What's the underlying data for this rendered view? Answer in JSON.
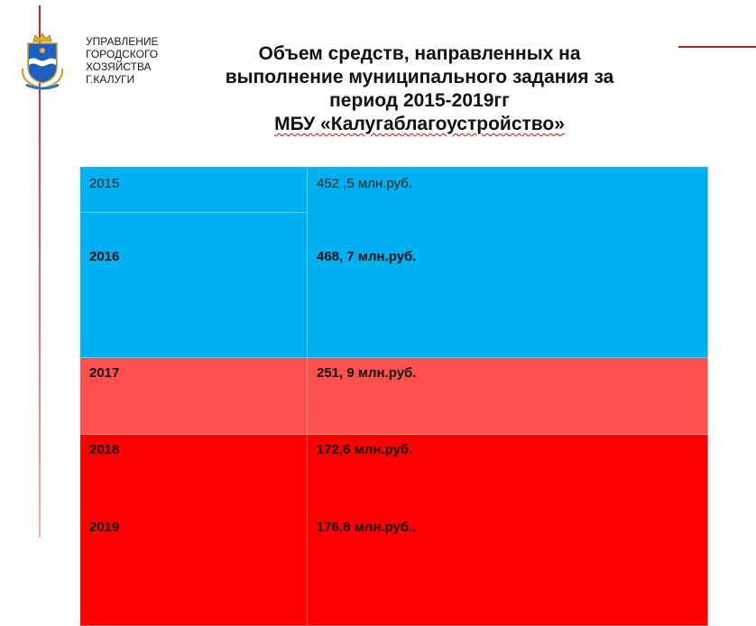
{
  "header": {
    "org_lines": [
      "УПРАВЛЕНИЕ",
      "ГОРОДСКОГО",
      "ХОЗЯЙСТВА",
      "Г.КАЛУГИ"
    ],
    "title_lines": [
      "Объем средств, направленных на",
      "выполнение муниципального задания за",
      "период 2015-2019гг",
      "МБУ «Калугаблагоустройство»"
    ]
  },
  "table": {
    "rows": [
      {
        "year": "2015",
        "value": "452 ,5 млн.руб."
      },
      {
        "year": "2016",
        "value": "468, 7 млн.руб."
      },
      {
        "year": "2017",
        "value": "251, 9 млн.руб."
      },
      {
        "year": "2018",
        "value": "172,6 млн.руб."
      },
      {
        "year": "2019",
        "value": "176,8 млн.руб.."
      }
    ]
  },
  "colors": {
    "blue": "#00b0f0",
    "light_red": "#ff5050",
    "red": "#ff0000",
    "accent_line": "#c21a1a"
  },
  "icons": {
    "emblem": "kaluga-coat-of-arms-icon"
  }
}
